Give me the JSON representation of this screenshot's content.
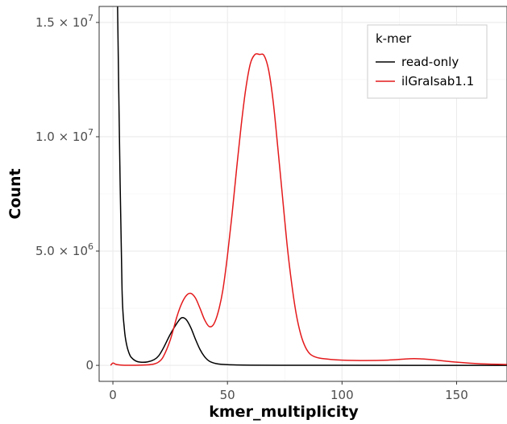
{
  "chart_data": {
    "type": "line",
    "title": "",
    "xlabel": "kmer_multiplicity",
    "ylabel": "Count",
    "xlim": [
      -6,
      172
    ],
    "ylim": [
      -700000,
      15700000
    ],
    "x_ticks": [
      0,
      50,
      100,
      150
    ],
    "x_tick_labels": [
      "0",
      "50",
      "100",
      "150"
    ],
    "y_ticks": [
      0,
      5000000,
      10000000,
      15000000
    ],
    "y_tick_labels": [
      {
        "base": "0",
        "exp": ""
      },
      {
        "base": "5.0 × 10",
        "exp": "6"
      },
      {
        "base": "1.0 × 10",
        "exp": "7"
      },
      {
        "base": "1.5 × 10",
        "exp": "7"
      }
    ],
    "grid": true,
    "legend": {
      "title": "k-mer",
      "position": "top-right"
    },
    "series": [
      {
        "name": "read-only",
        "color": "#000000",
        "x": [
          2,
          3,
          4,
          5,
          6,
          7,
          8,
          10,
          12,
          15,
          18,
          20,
          22,
          25,
          28,
          30,
          32,
          34,
          36,
          38,
          40,
          42,
          45,
          50,
          60,
          80,
          100,
          130,
          172
        ],
        "y": [
          16000000,
          9000000,
          3300000,
          1600000,
          900000,
          550000,
          350000,
          190000,
          140000,
          150000,
          250000,
          420000,
          750000,
          1350000,
          1850000,
          2080000,
          2000000,
          1650000,
          1150000,
          700000,
          380000,
          190000,
          80000,
          30000,
          10000,
          5000,
          2000,
          1000,
          500
        ]
      },
      {
        "name": "ilGraIsab1.1",
        "color": "#e41a1c",
        "x": [
          -1,
          0,
          1,
          2,
          5,
          10,
          15,
          18,
          20,
          22,
          25,
          28,
          30,
          32,
          34,
          36,
          38,
          40,
          42,
          44,
          46,
          48,
          50,
          52,
          54,
          56,
          58,
          60,
          62,
          64,
          66,
          68,
          70,
          72,
          74,
          76,
          78,
          80,
          82,
          84,
          86,
          88,
          90,
          95,
          100,
          110,
          120,
          130,
          135,
          140,
          150,
          160,
          172
        ],
        "y": [
          0,
          100000,
          60000,
          30000,
          5000,
          5000,
          20000,
          60000,
          150000,
          380000,
          1100000,
          2150000,
          2700000,
          3050000,
          3150000,
          2950000,
          2500000,
          2000000,
          1700000,
          1800000,
          2350000,
          3300000,
          4800000,
          6600000,
          8600000,
          10500000,
          12100000,
          13200000,
          13600000,
          13600000,
          13550000,
          12900000,
          11500000,
          9500000,
          7400000,
          5300000,
          3600000,
          2250000,
          1350000,
          800000,
          500000,
          380000,
          320000,
          260000,
          230000,
          210000,
          230000,
          290000,
          280000,
          240000,
          140000,
          70000,
          40000
        ]
      }
    ]
  }
}
